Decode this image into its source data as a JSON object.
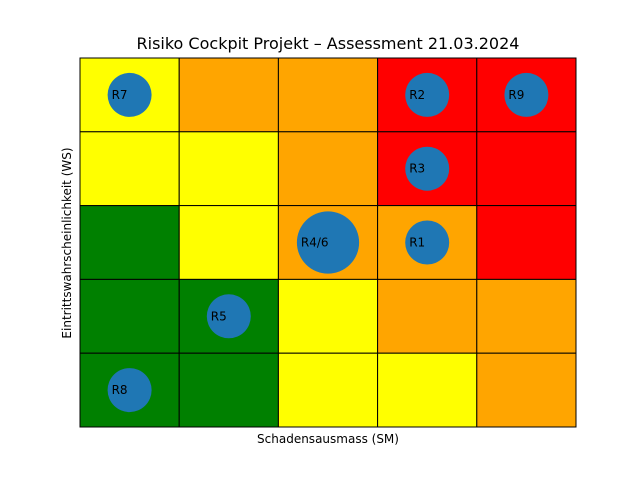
{
  "chart_data": {
    "type": "scatter",
    "title": "Risiko Cockpit Projekt – Assessment 21.03.2024",
    "xlabel": "Schadensausmass (SM)",
    "ylabel": "Eintrittswahrscheinlichkeit (WS)",
    "xlim": [
      0,
      5
    ],
    "ylim": [
      0,
      5
    ],
    "grid": true,
    "legend": "none",
    "heatmap": {
      "rows_top_to_bottom": [
        [
          "yellow",
          "orange",
          "orange",
          "red",
          "red"
        ],
        [
          "yellow",
          "yellow",
          "orange",
          "red",
          "red"
        ],
        [
          "green",
          "yellow",
          "orange",
          "orange",
          "red"
        ],
        [
          "green",
          "green",
          "yellow",
          "orange",
          "orange"
        ],
        [
          "green",
          "green",
          "yellow",
          "yellow",
          "orange"
        ]
      ],
      "colors": {
        "green": "#008000",
        "yellow": "#ffff00",
        "orange": "#ffa500",
        "red": "#ff0000"
      }
    },
    "series": [
      {
        "points": [
          {
            "label": "R7",
            "x": 0.5,
            "y": 4.5,
            "size": 1
          },
          {
            "label": "R2",
            "x": 3.5,
            "y": 4.5,
            "size": 1
          },
          {
            "label": "R9",
            "x": 4.5,
            "y": 4.5,
            "size": 1
          },
          {
            "label": "R3",
            "x": 3.5,
            "y": 3.5,
            "size": 1
          },
          {
            "label": "R4/6",
            "x": 2.5,
            "y": 2.5,
            "size": 2
          },
          {
            "label": "R1",
            "x": 3.5,
            "y": 2.5,
            "size": 1
          },
          {
            "label": "R5",
            "x": 1.5,
            "y": 1.5,
            "size": 1
          },
          {
            "label": "R8",
            "x": 0.5,
            "y": 0.5,
            "size": 1
          }
        ],
        "color": "#1f77b4"
      }
    ]
  }
}
